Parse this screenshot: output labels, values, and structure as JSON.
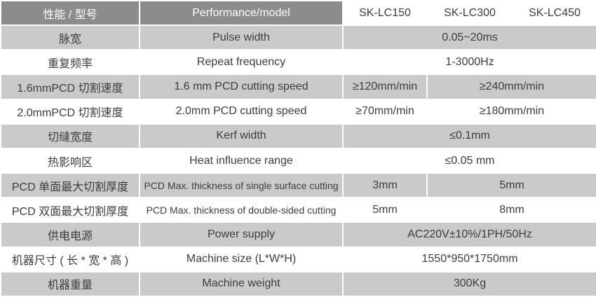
{
  "table": {
    "header": {
      "cn": "性能 / 型号",
      "en": "Performance/model",
      "models": [
        "SK-LC150",
        "SK-LC300",
        "SK-LC450"
      ]
    },
    "rows": [
      {
        "cn": "脉宽",
        "en": "Pulse width",
        "values": [
          "0.05~20ms"
        ]
      },
      {
        "cn": "重复频率",
        "en": "Repeat frequency",
        "values": [
          "1-3000Hz"
        ]
      },
      {
        "cn": "1.6mmPCD 切割速度",
        "en": "1.6 mm PCD cutting speed",
        "values": [
          "≥120mm/min",
          "≥240mm/min"
        ]
      },
      {
        "cn": "2.0mmPCD 切割速度",
        "en": "2.0mm PCD cutting speed",
        "values": [
          "≥70mm/min",
          "≥180mm/min"
        ]
      },
      {
        "cn": "切缝宽度",
        "en": "Kerf width",
        "values": [
          "≤0.1mm"
        ]
      },
      {
        "cn": "热影响区",
        "en": "Heat influence range",
        "values": [
          "≤0.05 mm"
        ]
      },
      {
        "cn": "PCD 单面最大切割厚度",
        "en": "PCD Max. thickness of single surface cutting",
        "values": [
          "3mm",
          "5mm"
        ]
      },
      {
        "cn": "PCD 双面最大切割厚度",
        "en": "PCD Max. thickness of double-sided cutting",
        "values": [
          "5mm",
          "8mm"
        ]
      },
      {
        "cn": "供电电源",
        "en": "Power supply",
        "values": [
          "AC220V±10%/1PH/50Hz"
        ]
      },
      {
        "cn": "机器尺寸 ( 长 * 宽 * 高 )",
        "en": "Machine size (L*W*H)",
        "values": [
          "1550*950*1750mm"
        ]
      },
      {
        "cn": "机器重量",
        "en": "Machine weight",
        "values": [
          "300Kg"
        ]
      }
    ]
  }
}
